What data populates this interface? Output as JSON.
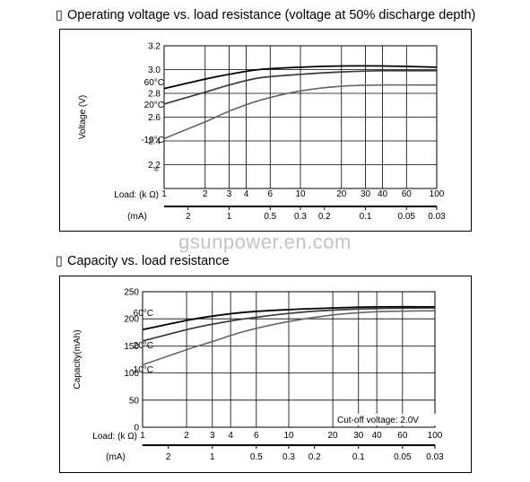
{
  "watermark": "gsunpower.en.com",
  "bullet_glyph": "▯",
  "chart_data": [
    {
      "type": "line",
      "title": "Operating voltage vs. load resistance (voltage at 50% discharge depth)",
      "ylabel": "Voltage (V)",
      "ylim": [
        2.0,
        3.2
      ],
      "yticks": [
        "3.2",
        "3.0",
        "2.8",
        "2.6",
        "2.4",
        "2.2"
      ],
      "yticks_values": [
        3.2,
        3.0,
        2.8,
        2.6,
        2.4,
        2.2
      ],
      "axis_break": "≈",
      "x_scale": "log",
      "xlim": [
        1,
        100
      ],
      "xlabel_kohm": "Load: (k Ω)",
      "xticks_kohm": [
        1,
        2,
        3,
        4,
        6,
        10,
        20,
        30,
        40,
        60,
        100
      ],
      "xlabel_ma": "(mA)",
      "xticks_ma": [
        "2",
        "1",
        "0.5",
        "0.3",
        "0.2",
        "0.1",
        "0.05",
        "0.03"
      ],
      "xticks_ma_positions_kohm": [
        1.5,
        3,
        6,
        10,
        15,
        30,
        60,
        100
      ],
      "series": [
        {
          "name": "60°C",
          "x": [
            1,
            2,
            3,
            5,
            10,
            20,
            40,
            100
          ],
          "y": [
            2.84,
            2.92,
            2.96,
            3.0,
            3.02,
            3.03,
            3.03,
            3.02
          ]
        },
        {
          "name": "20°C",
          "x": [
            1,
            2,
            3,
            5,
            10,
            20,
            40,
            100
          ],
          "y": [
            2.71,
            2.81,
            2.87,
            2.93,
            2.96,
            2.98,
            2.99,
            2.99
          ]
        },
        {
          "name": "-10°C",
          "x": [
            1,
            2,
            3,
            5,
            10,
            20,
            40,
            100
          ],
          "y": [
            2.42,
            2.56,
            2.65,
            2.74,
            2.82,
            2.86,
            2.87,
            2.87
          ]
        }
      ],
      "grid": true
    },
    {
      "type": "line",
      "title": "Capacity vs. load resistance",
      "ylabel": "Capacity(mAh)",
      "ylim": [
        0,
        250
      ],
      "yticks": [
        "250",
        "200",
        "150",
        "100",
        "50",
        "0"
      ],
      "yticks_values": [
        250,
        200,
        150,
        100,
        50,
        0
      ],
      "x_scale": "log",
      "xlim": [
        1,
        100
      ],
      "xlabel_kohm": "Load: (k Ω)",
      "xticks_kohm": [
        1,
        2,
        3,
        4,
        6,
        10,
        20,
        30,
        40,
        60,
        100
      ],
      "xlabel_ma": "(mA)",
      "xticks_ma": [
        "2",
        "1",
        "0.5",
        "0.3",
        "0.2",
        "0.1",
        "0.05",
        "0.03"
      ],
      "xticks_ma_positions_kohm": [
        1.5,
        3,
        6,
        10,
        15,
        30,
        60,
        100
      ],
      "annotation": "Cut-off voltage: 2.0V",
      "series": [
        {
          "name": "60°C",
          "x": [
            1,
            2,
            3,
            5,
            10,
            20,
            40,
            100
          ],
          "y": [
            180,
            197,
            205,
            212,
            217,
            220,
            222,
            222
          ]
        },
        {
          "name": "20°C",
          "x": [
            1,
            2,
            3,
            5,
            10,
            20,
            40,
            100
          ],
          "y": [
            159,
            180,
            190,
            200,
            210,
            216,
            219,
            220
          ]
        },
        {
          "name": "-10°C",
          "x": [
            1,
            2,
            3,
            5,
            10,
            20,
            40,
            100
          ],
          "y": [
            115,
            143,
            158,
            177,
            195,
            207,
            213,
            215
          ]
        }
      ],
      "grid": true
    }
  ]
}
